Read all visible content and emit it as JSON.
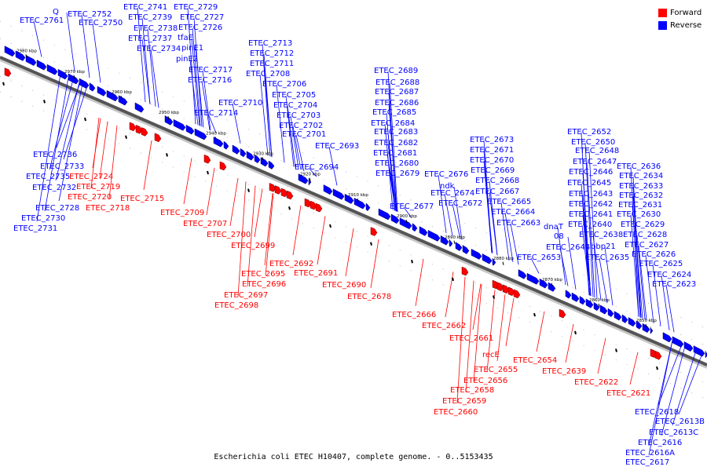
{
  "legend": {
    "forward": {
      "label": "Forward",
      "color": "#ff0000"
    },
    "reverse": {
      "label": "Reverse",
      "color": "#0000ff"
    }
  },
  "caption": "Escherichia coli ETEC H10407, complete genome. - 0..5153435",
  "axis_ticks": [
    "2980 kbp",
    "2970 kbp",
    "2960 kbp",
    "2950 kbp",
    "2940 kbp",
    "2930 kbp",
    "2920 kbp",
    "2910 kbp",
    "2900 kbp",
    "2890 kbp",
    "2880 kbp",
    "2870 kbp",
    "2860 kbp",
    "2850 kbp"
  ],
  "reverse_genes": [
    "Q",
    "ETEC_2761",
    "ETEC_2752",
    "ETEC_2750",
    "ETEC_2741",
    "ETEC_2739",
    "ETEC_2738",
    "ETEC_2737",
    "ETEC_2734",
    "ETEC_2729",
    "ETEC_2727",
    "ETEC_2726",
    "tfaE",
    "pinE1",
    "pinE2",
    "ETEC_2717",
    "ETEC_2716",
    "ETEC_2713",
    "ETEC_2712",
    "ETEC_2711",
    "ETEC_2708",
    "ETEC_2706",
    "ETEC_2705",
    "ETEC_2704",
    "ETEC_2703",
    "ETEC_2702",
    "ETEC_2701",
    "ETEC_2710",
    "ETEC_2714",
    "ETEC_2693",
    "ETEC_2694",
    "ETEC_2689",
    "ETEC_2688",
    "ETEC_2687",
    "ETEC_2686",
    "ETEC_2685",
    "ETEC_2684",
    "ETEC_2683",
    "ETEC_2682",
    "ETEC_2681",
    "ETEC_2680",
    "ETEC_2679",
    "ETEC_2677",
    "ETEC_2676",
    "ndk",
    "ETEC_2674",
    "ETEC_2672",
    "ETEC_2673",
    "ETEC_2671",
    "ETEC_2670",
    "ETEC_2669",
    "ETEC_2668",
    "ETEC_2667",
    "ETEC_2665",
    "ETEC_2664",
    "ETEC_2663",
    "ETEC_2652",
    "ETEC_2650",
    "ETEC_2648",
    "ETEC_2647",
    "ETEC_2646",
    "ETEC_2645",
    "ETEC_2643",
    "ETEC_2642",
    "ETEC_2641",
    "ETEC_2640",
    "ETEC_2638",
    "dnaT",
    "08",
    "ETEC_2644",
    "bbp21",
    "ETEC_2653",
    "ETEC_2635",
    "ETEC_2636",
    "ETEC_2634",
    "ETEC_2633",
    "ETEC_2632",
    "ETEC_2631",
    "ETEC_2630",
    "ETEC_2629",
    "ETEC_2628",
    "ETEC_2627",
    "ETEC_2626",
    "ETEC_2625",
    "ETEC_2624",
    "ETEC_2623",
    "ETEC_2736",
    "ETEC_2733",
    "ETEC_2735",
    "ETEC_2732",
    "ETEC_2728",
    "ETEC_2730",
    "ETEC_2731",
    "ETEC_2618",
    "ETEC_2613B",
    "ETEC_2613C",
    "ETEC_2616",
    "ETEC_2616A",
    "ETEC_2617"
  ],
  "forward_genes": [
    "ETEC_2724",
    "ETEC_2719",
    "ETEC_2720",
    "ETEC_2718",
    "ETEC_2715",
    "ETEC_2709",
    "ETEC_2707",
    "ETEC_2700",
    "ETEC_2699",
    "ETEC_2695",
    "ETEC_2696",
    "ETEC_2697",
    "ETEC_2698",
    "ETEC_2692",
    "ETEC_2691",
    "ETEC_2690",
    "ETEC_2678",
    "ETEC_2666",
    "ETEC_2662",
    "ETEC_2661",
    "recE",
    "ETEC_2655",
    "ETEC_2656",
    "ETEC_2658",
    "ETEC_2659",
    "ETEC_2660",
    "ETEC_2654",
    "ETEC_2639",
    "ETEC_2622",
    "ETEC_2621"
  ]
}
